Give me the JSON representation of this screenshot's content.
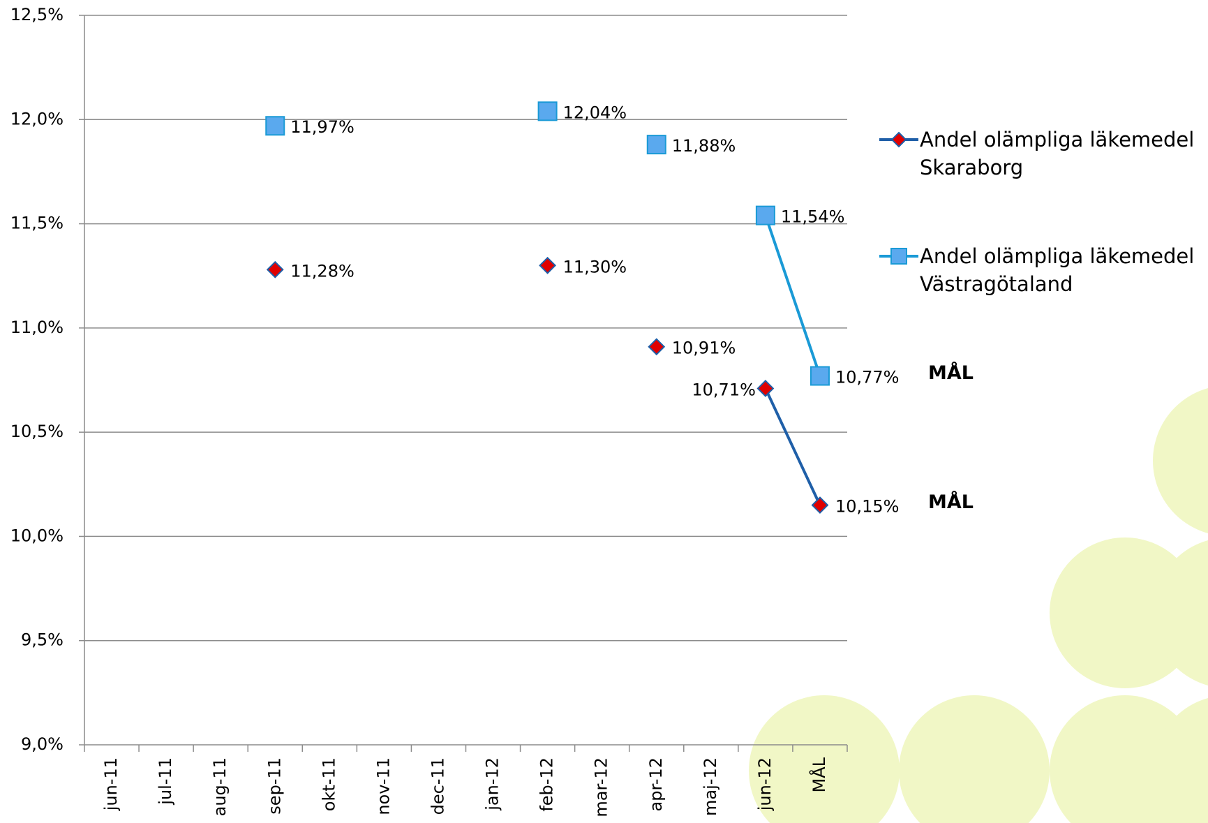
{
  "chart_data": {
    "type": "line",
    "categories": [
      "jun-11",
      "jul-11",
      "aug-11",
      "sep-11",
      "okt-11",
      "nov-11",
      "dec-11",
      "jan-12",
      "feb-12",
      "mar-12",
      "apr-12",
      "maj-12",
      "jun-12",
      "MÅL"
    ],
    "series": [
      {
        "name": "Andel olämpliga läkemedel Skaraborg",
        "color": "#1f5fa8",
        "marker": "diamond",
        "marker_color": "#e00000",
        "values": [
          null,
          null,
          null,
          11.28,
          null,
          null,
          null,
          null,
          11.3,
          null,
          10.91,
          null,
          10.71,
          10.15
        ],
        "value_labels": [
          null,
          null,
          null,
          "11,28%",
          null,
          null,
          null,
          null,
          "11,30%",
          null,
          "10,91%",
          null,
          "10,71%",
          "10,15%"
        ]
      },
      {
        "name": "Andel olämpliga läkemedel Västragötaland",
        "color": "#1a9ad6",
        "marker": "square",
        "marker_color": "#5aa9ee",
        "values": [
          null,
          null,
          null,
          11.97,
          null,
          null,
          null,
          null,
          12.04,
          null,
          11.88,
          null,
          11.54,
          10.77
        ],
        "value_labels": [
          null,
          null,
          null,
          "11,97%",
          null,
          null,
          null,
          null,
          "12,04%",
          null,
          "11,88%",
          null,
          "11,54%",
          "10,77%"
        ]
      }
    ],
    "annotations": [
      "MÅL",
      "MÅL"
    ],
    "ylim": [
      9.0,
      12.5
    ],
    "yticks": [
      {
        "value": 9.0,
        "label": "9,0%"
      },
      {
        "value": 9.5,
        "label": "9,5%"
      },
      {
        "value": 10.0,
        "label": "10,0%"
      },
      {
        "value": 10.5,
        "label": "10,5%"
      },
      {
        "value": 11.0,
        "label": "11,0%"
      },
      {
        "value": 11.5,
        "label": "11,5%"
      },
      {
        "value": 12.0,
        "label": "12,0%"
      },
      {
        "value": 12.5,
        "label": "12,5%"
      }
    ],
    "grid": true,
    "legend": "right"
  }
}
